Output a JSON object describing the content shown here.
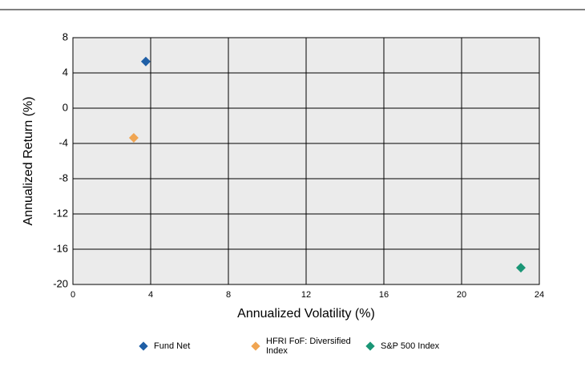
{
  "chart_data": {
    "type": "scatter",
    "xlabel": "Annualized Volatility (%)",
    "ylabel": "Annualized Return (%)",
    "xlim": [
      0,
      24
    ],
    "xticks": [
      0,
      4,
      8,
      12,
      16,
      20,
      24
    ],
    "ylim": [
      -20,
      8
    ],
    "yticks": [
      -20,
      -16,
      -12,
      -8,
      -4,
      0,
      4,
      8
    ],
    "grid": true,
    "series": [
      {
        "name": "Fund Net",
        "color": "#1f5fa6",
        "x": [
          3.75
        ],
        "values": [
          5.3
        ]
      },
      {
        "name": "HFRI FoF: Diversified Index",
        "color": "#f0a552",
        "x": [
          3.13
        ],
        "values": [
          -3.36
        ]
      },
      {
        "name": "S&P 500 Index",
        "color": "#1a9676",
        "x": [
          23.05
        ],
        "values": [
          -18.1
        ]
      }
    ]
  }
}
